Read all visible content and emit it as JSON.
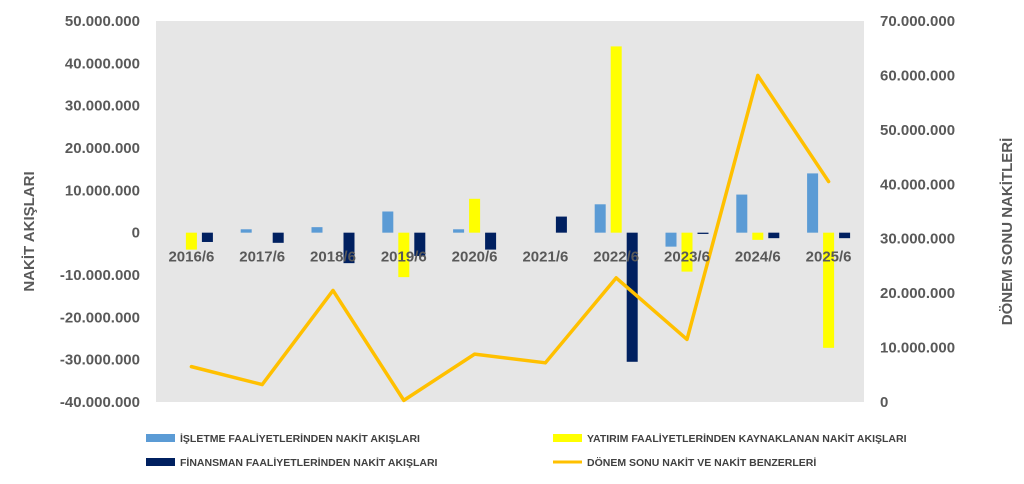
{
  "chart_data": {
    "type": "bar",
    "categories": [
      "2016/6",
      "2017/6",
      "2018/6",
      "2019/6",
      "2020/6",
      "2021/6",
      "2022/6",
      "2023/6",
      "2024/6",
      "2025/6"
    ],
    "series": [
      {
        "name": "İŞLETME FAALİYETLERİNDEN NAKİT AKIŞLARI",
        "type": "bar",
        "axis": "left",
        "color": "#5b9bd5",
        "values": [
          0,
          800000,
          1300000,
          5000000,
          800000,
          0,
          6700000,
          -3300000,
          9000000,
          14000000
        ]
      },
      {
        "name": "YATIRIM FAALİYETLERİNDEN KAYNAKLANAN NAKİT AKIŞLARI",
        "type": "bar",
        "axis": "left",
        "color": "#ffff00",
        "values": [
          -4000000,
          0,
          0,
          -10500000,
          8000000,
          0,
          44000000,
          -9200000,
          -1700000,
          -27200000
        ]
      },
      {
        "name": "FİNANSMAN FAALİYETLERİNDEN NAKİT AKIŞLARI",
        "type": "bar",
        "axis": "left",
        "color": "#002060",
        "values": [
          -2200000,
          -2400000,
          -7200000,
          -5500000,
          -4000000,
          3800000,
          -30500000,
          -300000,
          -1300000,
          -1300000
        ]
      },
      {
        "name": "DÖNEM SONU NAKİT VE NAKİT BENZERLERİ",
        "type": "line",
        "axis": "right",
        "color": "#ffc000",
        "values": [
          6500000,
          3200000,
          20500000,
          300000,
          8800000,
          7200000,
          22800000,
          11500000,
          60000000,
          40500000
        ]
      }
    ],
    "ylabel": "NAKİT AKIŞLARI",
    "ylabel_right": "DÖNEM SONU NAKİTLERİ",
    "ylim": [
      -40000000,
      50000000
    ],
    "ylim_right": [
      0,
      70000000
    ],
    "yticks": [
      "50.000.000",
      "40.000.000",
      "30.000.000",
      "20.000.000",
      "10.000.000",
      "0",
      "-10.000.000",
      "-20.000.000",
      "-30.000.000",
      "-40.000.000"
    ],
    "yticks_right": [
      "70.000.000",
      "60.000.000",
      "50.000.000",
      "40.000.000",
      "30.000.000",
      "20.000.000",
      "10.000.000",
      "0"
    ],
    "grid": false,
    "plot_background": "#e6e6e6",
    "legend_position": "bottom"
  }
}
